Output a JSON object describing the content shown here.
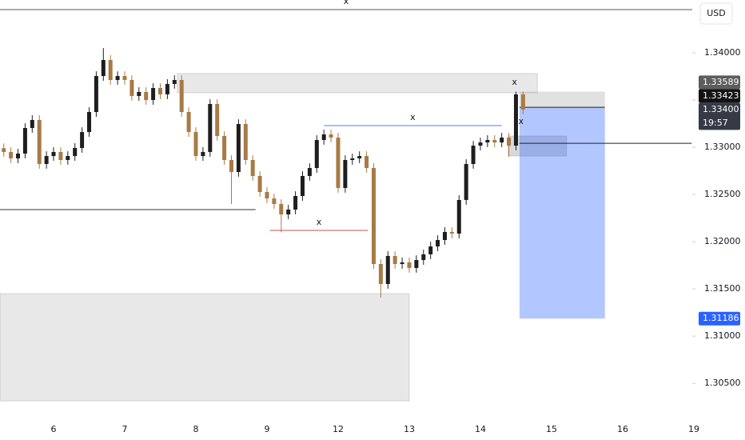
{
  "chart_data": {
    "type": "candlestick",
    "currency": "USD",
    "categories": [
      "6",
      "7",
      "8",
      "9",
      "12",
      "13",
      "14",
      "15",
      "16",
      "19"
    ],
    "xlim": [
      -0.753,
      8.978
    ],
    "ylim": [
      1.3007,
      1.34559
    ],
    "yticks": [
      {
        "value": 1.305,
        "label": "1.30500"
      },
      {
        "value": 1.31,
        "label": "1.31000"
      },
      {
        "value": 1.315,
        "label": "1.31500"
      },
      {
        "value": 1.32,
        "label": "1.32000"
      },
      {
        "value": 1.325,
        "label": "1.32500"
      },
      {
        "value": 1.33,
        "label": "1.33000"
      },
      {
        "value": 1.335,
        "label": "1.33500"
      },
      {
        "value": 1.34,
        "label": "1.34000"
      }
    ],
    "up_color": "#1e1e1e",
    "down_color": "#a87a45",
    "candles": {
      "x": [
        -0.7,
        -0.6,
        -0.5,
        -0.4,
        -0.3,
        -0.2,
        -0.1,
        0,
        0.1,
        0.2,
        0.3,
        0.4,
        0.5,
        0.6,
        0.7,
        0.8,
        0.9,
        1,
        1.1,
        1.2,
        1.3,
        1.4,
        1.5,
        1.6,
        1.7,
        1.8,
        1.9,
        2,
        2.1,
        2.2,
        2.3,
        2.4,
        2.5,
        2.6,
        2.7,
        2.8,
        2.9,
        3,
        3.1,
        3.2,
        3.3,
        3.4,
        3.5,
        3.6,
        3.7,
        3.8,
        3.9,
        4,
        4.1,
        4.2,
        4.3,
        4.4,
        4.5,
        4.6,
        4.7,
        4.8,
        4.9,
        5,
        5.1,
        5.2,
        5.3,
        5.4,
        5.5,
        5.6,
        5.7,
        5.8,
        5.9,
        6,
        6.1,
        6.2,
        6.3,
        6.4,
        6.5,
        6.6
      ],
      "open": [
        1.3299,
        1.3295,
        1.32882,
        1.32933,
        1.33204,
        1.33289,
        1.32823,
        1.32907,
        1.3295,
        1.32865,
        1.32907,
        1.32992,
        1.33161,
        1.33373,
        1.33754,
        1.33924,
        1.33712,
        1.33754,
        1.33712,
        1.33543,
        1.33585,
        1.335,
        1.33627,
        1.3356,
        1.3367,
        1.33712,
        1.33373,
        1.33161,
        1.32907,
        1.3295,
        1.33458,
        1.33119,
        1.32865,
        1.32738,
        1.33246,
        1.32865,
        1.32696,
        1.32526,
        1.32458,
        1.32399,
        1.32289,
        1.3234,
        1.32484,
        1.32696,
        1.3278,
        1.33077,
        1.33136,
        1.33102,
        1.32569,
        1.32865,
        1.32882,
        1.32907,
        1.3278,
        1.31764,
        1.31552,
        1.31849,
        1.31764,
        1.31781,
        1.31722,
        1.31806,
        1.31866,
        1.3195,
        1.32018,
        1.32103,
        1.32086,
        1.32442,
        1.32823,
        1.33017,
        1.33051,
        1.33077,
        1.33051,
        1.33102,
        1.33017,
        1.3356
      ],
      "high": [
        1.3304,
        1.33,
        1.32983,
        1.33254,
        1.33339,
        1.33339,
        1.32957,
        1.33,
        1.33,
        1.32957,
        1.33042,
        1.33211,
        1.33423,
        1.33804,
        1.3405,
        1.33974,
        1.33804,
        1.33804,
        1.33762,
        1.33635,
        1.33635,
        1.33677,
        1.33677,
        1.3372,
        1.33762,
        1.33762,
        1.33423,
        1.33211,
        1.33,
        1.33508,
        1.33508,
        1.33169,
        1.32915,
        1.33296,
        1.33296,
        1.32915,
        1.32746,
        1.32576,
        1.32508,
        1.32449,
        1.3239,
        1.32534,
        1.32746,
        1.3283,
        1.33127,
        1.33186,
        1.33186,
        1.33152,
        1.32915,
        1.32932,
        1.32957,
        1.32957,
        1.3283,
        1.31814,
        1.31899,
        1.31899,
        1.31831,
        1.31831,
        1.31856,
        1.31916,
        1.32,
        1.32068,
        1.32153,
        1.32153,
        1.32492,
        1.32873,
        1.33067,
        1.33101,
        1.33127,
        1.33127,
        1.33152,
        1.33152,
        1.33589,
        1.33589
      ],
      "low": [
        1.329,
        1.32832,
        1.32832,
        1.32883,
        1.33154,
        1.32773,
        1.32773,
        1.32857,
        1.32815,
        1.32815,
        1.32857,
        1.32942,
        1.33111,
        1.33323,
        1.33704,
        1.33662,
        1.33662,
        1.33662,
        1.33493,
        1.33493,
        1.3345,
        1.3345,
        1.3351,
        1.3351,
        1.3362,
        1.33323,
        1.33111,
        1.32857,
        1.32857,
        1.329,
        1.33069,
        1.32815,
        1.324,
        1.32688,
        1.32815,
        1.32646,
        1.32476,
        1.32408,
        1.32349,
        1.321,
        1.32239,
        1.3229,
        1.32434,
        1.32646,
        1.3273,
        1.33027,
        1.33052,
        1.32519,
        1.32519,
        1.32815,
        1.32832,
        1.3273,
        1.31714,
        1.31408,
        1.31502,
        1.31714,
        1.31714,
        1.31672,
        1.31672,
        1.31756,
        1.31816,
        1.319,
        1.31968,
        1.32036,
        1.32036,
        1.32392,
        1.32773,
        1.32967,
        1.33001,
        1.33001,
        1.33001,
        1.329,
        1.32967,
        1.3335
      ],
      "close": [
        1.3295,
        1.32882,
        1.32933,
        1.33204,
        1.33289,
        1.32823,
        1.32907,
        1.3295,
        1.32865,
        1.32907,
        1.32992,
        1.33161,
        1.33373,
        1.33754,
        1.33924,
        1.33712,
        1.33754,
        1.33712,
        1.33543,
        1.33585,
        1.335,
        1.33627,
        1.3356,
        1.3367,
        1.33712,
        1.33373,
        1.33161,
        1.32907,
        1.3295,
        1.33458,
        1.33119,
        1.32865,
        1.32738,
        1.33246,
        1.32865,
        1.32696,
        1.32526,
        1.32458,
        1.32399,
        1.32289,
        1.3234,
        1.32484,
        1.32696,
        1.3278,
        1.33077,
        1.33136,
        1.33102,
        1.32569,
        1.32865,
        1.32882,
        1.32907,
        1.3278,
        1.31764,
        1.31552,
        1.31849,
        1.31764,
        1.31781,
        1.31722,
        1.31806,
        1.31866,
        1.3195,
        1.32018,
        1.32103,
        1.32086,
        1.32442,
        1.32823,
        1.33017,
        1.33051,
        1.33077,
        1.33051,
        1.33102,
        1.33017,
        1.3356,
        1.334
      ]
    },
    "zones": [
      {
        "x": [
          1.74,
          6.8
        ],
        "y": [
          1.33576,
          1.3378
        ],
        "color": "rgba(200,200,200,0.42)"
      },
      {
        "x": [
          -0.753,
          5.0
        ],
        "y": [
          1.30315,
          1.3145
        ],
        "color": "rgba(200,200,200,0.42)"
      },
      {
        "x": [
          6.39,
          7.21
        ],
        "y": [
          1.32907,
          1.33119
        ],
        "color": "rgba(170,170,170,0.45)"
      }
    ],
    "levels": [
      {
        "x": [
          -0.753,
          8.978
        ],
        "price": 1.34457,
        "color": "#555555",
        "label": "x"
      },
      {
        "x": [
          -0.753,
          2.84
        ],
        "price": 1.3234,
        "color": "#333333"
      },
      {
        "x": [
          3.8,
          6.3
        ],
        "price": 1.33229,
        "color": "#4f7df0",
        "label": "x"
      },
      {
        "x": [
          3.04,
          4.42
        ],
        "price": 1.3212,
        "color": "#c0505a",
        "label": "x"
      },
      {
        "x": [
          6.55,
          8.97
        ],
        "price": 1.33042,
        "color": "#222222"
      }
    ],
    "annotations": [
      {
        "text": "x",
        "x": 6.48,
        "price": 1.33687
      },
      {
        "text": "x",
        "x": 6.57,
        "price": 1.33271
      }
    ],
    "position": {
      "x": [
        6.55,
        7.75
      ],
      "entry": 1.33423,
      "stop": 1.33589,
      "target": 1.31186
    },
    "price_tags": [
      {
        "value": 1.33589,
        "label": "1.33589",
        "color": "#5d5d5d"
      },
      {
        "value": 1.33423,
        "label": "1.33423",
        "color": "#131313"
      },
      {
        "value": 1.334,
        "label": "1.33400",
        "color": "#363a45",
        "countdown": "19:57"
      },
      {
        "value": 1.31186,
        "label": "1.31186",
        "color": "#2962ff"
      }
    ]
  }
}
